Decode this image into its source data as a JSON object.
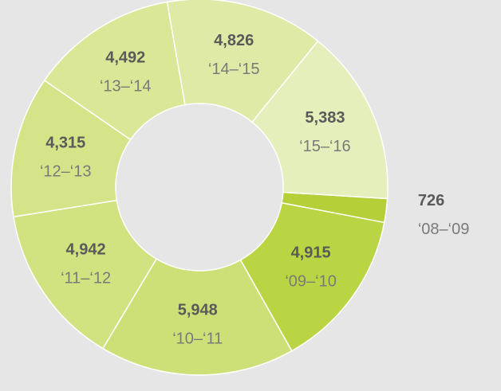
{
  "chart_data": {
    "type": "donut",
    "categories": [
      "‘08–‘09",
      "‘09–‘10",
      "‘10–‘11",
      "‘11–‘12",
      "‘12–‘13",
      "‘13–‘14",
      "‘14–‘15",
      "‘15–‘16"
    ],
    "values": [
      726,
      4915,
      5948,
      4942,
      4315,
      4492,
      4826,
      5383
    ],
    "value_labels": [
      "726",
      "4,915",
      "5,948",
      "4,942",
      "4,315",
      "4,492",
      "4,826",
      "5,383"
    ],
    "colors": [
      "#b4cf38",
      "#bad544",
      "#cde077",
      "#d1e280",
      "#d5e489",
      "#dae796",
      "#dfeaa6",
      "#e5efbb"
    ]
  }
}
